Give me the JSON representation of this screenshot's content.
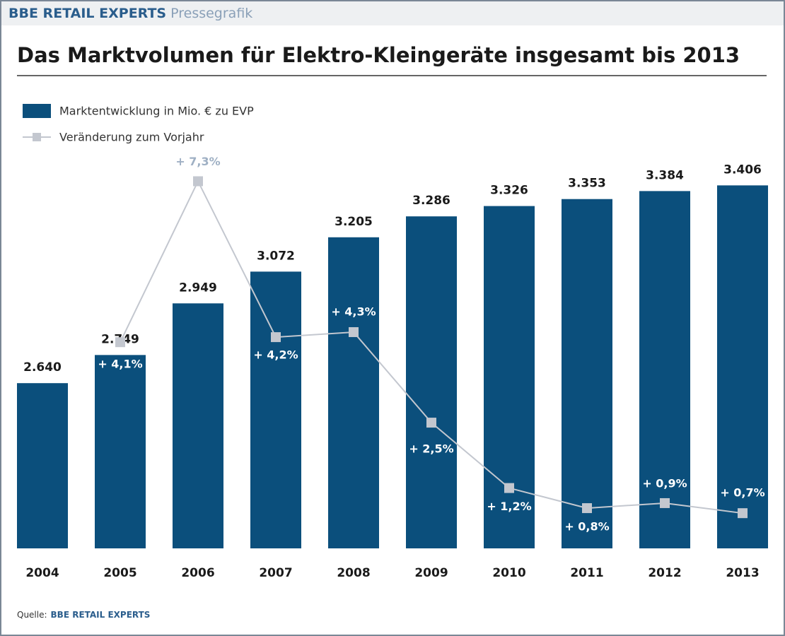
{
  "header": {
    "brand": "BBE RETAIL EXPERTS",
    "label": "Pressegrafik"
  },
  "source": {
    "label": "Quelle:",
    "brand": "BBE RETAIL EXPERTS"
  },
  "chart_data": {
    "type": "bar",
    "title": "Das Marktvolumen für Elektro-Kleingeräte insgesamt bis 2013",
    "categories": [
      "2004",
      "2005",
      "2006",
      "2007",
      "2008",
      "2009",
      "2010",
      "2011",
      "2012",
      "2013"
    ],
    "series": [
      {
        "name": "Marktentwicklung in Mio. € zu EVP",
        "type": "bar",
        "color": "#0b4f7c",
        "values": [
          2640,
          2749,
          2949,
          3072,
          3205,
          3286,
          3326,
          3353,
          3384,
          3406
        ],
        "value_labels": [
          "2.640",
          "2.749",
          "2.949",
          "3.072",
          "3.205",
          "3.286",
          "3.326",
          "3.353",
          "3.384",
          "3.406"
        ]
      },
      {
        "name": "Veränderung zum Vorjahr",
        "type": "line",
        "axis": "y2",
        "color": "#c3c7cf",
        "values": [
          null,
          4.1,
          7.3,
          4.2,
          4.3,
          2.5,
          1.2,
          0.8,
          0.9,
          0.7
        ],
        "value_labels": [
          null,
          "+ 4,1%",
          "+ 7,3%",
          "+ 4,2%",
          "+ 4,3%",
          "+ 2,5%",
          "+ 1,2%",
          "+ 0,8%",
          "+ 0,9%",
          "+ 0,7%"
        ]
      }
    ],
    "ylim": [
      2000,
      3500
    ],
    "y2lim": [
      0,
      7.7
    ]
  }
}
